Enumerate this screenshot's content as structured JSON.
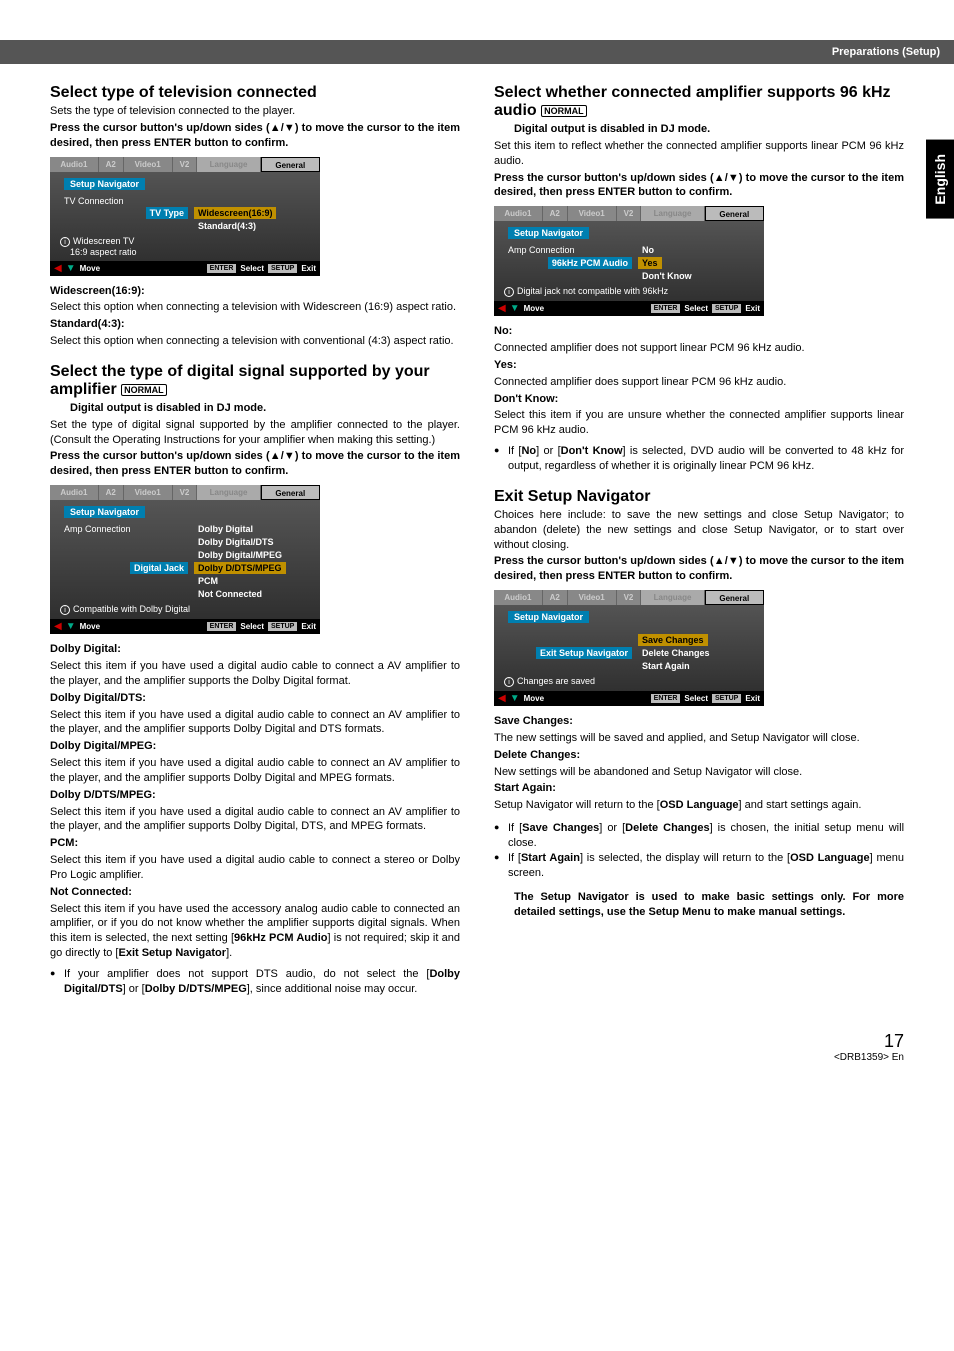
{
  "header": {
    "title": "Preparations (Setup)"
  },
  "side_tab": "English",
  "page_number": "17",
  "page_code": "<DRB1359> En",
  "left": {
    "s1": {
      "h": "Select type of television connected",
      "sub": "Sets the type of television connected to the player.",
      "instr": "Press the cursor button's up/down sides (▲/▼) to move the cursor to the item desired, then press ENTER button to confirm.",
      "osd": {
        "tabs": [
          "Audio1",
          "A2",
          "Video1",
          "V2",
          "Language",
          "General"
        ],
        "nav": "Setup Navigator",
        "section": "TV Connection",
        "lhs": "TV Type",
        "opt1": "Widescreen(16:9)",
        "opt2": "Standard(4:3)",
        "info": "Widescreen TV\n16:9 aspect ratio",
        "foot_move": "Move",
        "foot_buttons": [
          "ENTER",
          "Select",
          "SETUP",
          "Exit"
        ]
      },
      "def1h": "Widescreen(16:9):",
      "def1": "Select this option when connecting a television with Widescreen (16:9) aspect ratio.",
      "def2h": "Standard(4:3):",
      "def2": "Select this option when connecting a television with conventional (4:3) aspect ratio."
    },
    "s2": {
      "h": "Select the type of digital signal supported by your amplifier",
      "badge": "NORMAL",
      "note": "Digital output is disabled in DJ mode.",
      "intro": "Set the type of digital signal supported by the amplifier connected to the player. (Consult the Operating Instructions for your amplifier when making this setting.)",
      "instr": "Press the cursor button's up/down sides (▲/▼) to move the cursor to the item desired, then press ENTER button to confirm.",
      "osd": {
        "nav": "Setup Navigator",
        "section": "Amp Connection",
        "lhs": "Digital Jack",
        "opts": [
          "Dolby Digital",
          "Dolby Digital/DTS",
          "Dolby Digital/MPEG",
          "Dolby D/DTS/MPEG",
          "PCM",
          "Not Connected"
        ],
        "info": "Compatible with Dolby Digital"
      },
      "defs": [
        {
          "h": "Dolby Digital:",
          "t": "Select this item if you have used a digital audio cable to connect a AV amplifier to the player, and the amplifier supports the Dolby Digital format."
        },
        {
          "h": "Dolby Digital/DTS:",
          "t": "Select this item if you have used a digital audio cable to connect an AV amplifier to the player, and the amplifier supports Dolby Digital and DTS formats."
        },
        {
          "h": "Dolby Digital/MPEG:",
          "t": "Select this item if you have used a digital audio cable to connect an AV amplifier to the player, and the amplifier supports Dolby Digital and MPEG formats."
        },
        {
          "h": "Dolby D/DTS/MPEG:",
          "t": "Select this item if you have used a digital audio cable to connect an AV amplifier to the player, and the amplifier supports Dolby Digital, DTS, and MPEG formats."
        },
        {
          "h": "PCM:",
          "t": "Select this item if you have used a digital audio cable to connect a stereo or Dolby Pro Logic amplifier."
        },
        {
          "h": "Not Connected:",
          "t": "Select this item if you have used the accessory analog audio cable to connected an amplifier, or if you do not know whether the amplifier supports digital signals. When this item is selected, the next setting [96kHz PCM Audio] is not required; skip it and go directly to [Exit Setup Navigator]."
        }
      ],
      "bullet": "If your amplifier does not support DTS audio, do not select the [Dolby Digital/DTS] or [Dolby D/DTS/MPEG], since additional noise may occur."
    }
  },
  "right": {
    "s1": {
      "h": "Select whether connected amplifier supports 96 kHz audio",
      "badge": "NORMAL",
      "note": "Digital output is disabled in DJ mode.",
      "intro": "Set this item to reflect whether the connected amplifier supports linear PCM 96 kHz audio.",
      "instr": "Press the cursor button's up/down sides (▲/▼) to move the cursor to the item desired, then press ENTER button to confirm.",
      "osd": {
        "nav": "Setup Navigator",
        "section": "Amp Connection",
        "lhs": "96kHz PCM Audio",
        "opts": [
          "No",
          "Yes",
          "Don't Know"
        ],
        "info": "Digital jack not compatible with 96kHz"
      },
      "defs": [
        {
          "h": "No:",
          "t": "Connected amplifier does not support linear PCM 96 kHz audio."
        },
        {
          "h": "Yes:",
          "t": "Connected amplifier does support linear PCM 96 kHz audio."
        },
        {
          "h": "Don't Know:",
          "t": "Select this item if you are unsure whether the connected amplifier supports linear PCM 96 kHz audio."
        }
      ],
      "bullet": "If [No] or [Don't Know] is selected, DVD audio will be converted to 48 kHz for output, regardless of whether it is originally linear PCM 96 kHz."
    },
    "s2": {
      "h": "Exit Setup Navigator",
      "intro": "Choices here include: to save the new settings and close Setup Navigator; to abandon (delete) the new settings and close Setup Navigator, or to start over without closing.",
      "instr": "Press the cursor button's up/down sides (▲/▼) to move the cursor to the item desired, then press ENTER button to confirm.",
      "osd": {
        "nav": "Setup Navigator",
        "lhs": "Exit Setup Navigator",
        "opts": [
          "Save Changes",
          "Delete Changes",
          "Start Again"
        ],
        "info": "Changes are saved"
      },
      "defs": [
        {
          "h": "Save Changes:",
          "t": "The new settings will be saved and applied, and Setup Navigator will close."
        },
        {
          "h": "Delete Changes:",
          "t": "New settings will be abandoned and Setup Navigator will close."
        },
        {
          "h": "Start Again:",
          "t": "Setup Navigator will return to the [OSD Language] and start settings again."
        }
      ],
      "bullets": [
        "If [Save Changes] or [Delete Changes] is chosen, the initial setup menu will close.",
        "If [Start Again] is selected, the display will return to the [OSD Language] menu screen."
      ],
      "closing": "The Setup Navigator is used to make basic settings only. For more detailed settings, use the Setup Menu to make manual settings."
    }
  }
}
